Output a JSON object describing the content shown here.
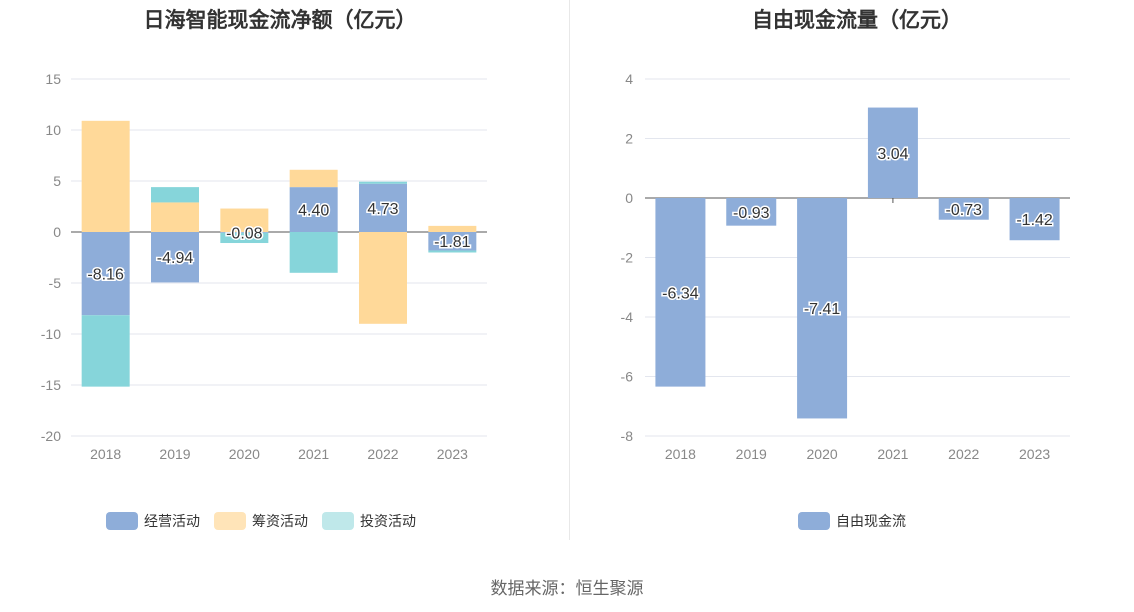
{
  "source_text": "数据来源：恒生聚源",
  "colors": {
    "operating": "#8eadd9",
    "financing": "#ffd999",
    "investing": "#86d5da",
    "fcf": "#8eadd9"
  },
  "chart_data": [
    {
      "type": "bar",
      "stacked": true,
      "title": "日海智能现金流净额（亿元）",
      "categories": [
        "2018",
        "2019",
        "2020",
        "2021",
        "2022",
        "2023"
      ],
      "ylim": [
        -20,
        15
      ],
      "yticks": [
        15,
        10,
        5,
        0,
        -5,
        -10,
        -15,
        -20
      ],
      "series": [
        {
          "name": "经营活动",
          "key": "operating",
          "values": [
            -8.16,
            -4.94,
            -0.08,
            4.4,
            4.73,
            -1.81
          ],
          "labels": [
            "-8.16",
            "-4.94",
            "-0.08",
            "4.40",
            "4.73",
            "-1.81"
          ]
        },
        {
          "name": "筹资活动",
          "key": "financing",
          "values": [
            10.9,
            2.9,
            2.3,
            1.7,
            -9.0,
            0.6
          ]
        },
        {
          "name": "投资活动",
          "key": "investing",
          "values": [
            -7.0,
            1.5,
            -1.0,
            -4.0,
            0.2,
            -0.2
          ]
        }
      ],
      "legend": "bottom"
    },
    {
      "type": "bar",
      "title": "自由现金流量（亿元）",
      "categories": [
        "2018",
        "2019",
        "2020",
        "2021",
        "2022",
        "2023"
      ],
      "ylim": [
        -8,
        4
      ],
      "yticks": [
        4,
        2,
        0,
        -2,
        -4,
        -6,
        -8
      ],
      "series": [
        {
          "name": "自由现金流",
          "key": "fcf",
          "values": [
            -6.34,
            -0.93,
            -7.41,
            3.04,
            -0.73,
            -1.42
          ],
          "labels": [
            "-6.34",
            "-0.93",
            "-7.41",
            "3.04",
            "-0.73",
            "-1.42"
          ]
        }
      ],
      "legend": "bottom"
    }
  ]
}
